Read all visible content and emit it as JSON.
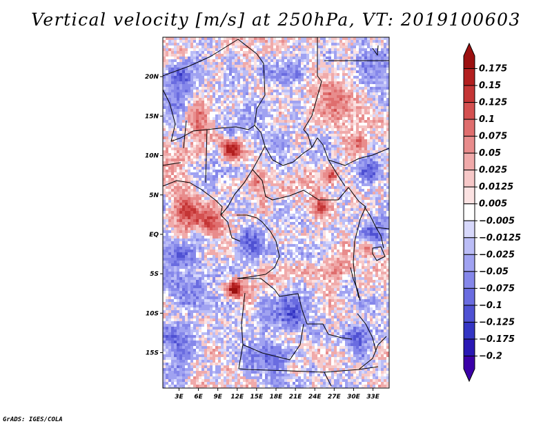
{
  "chart_data": {
    "type": "heatmap",
    "title": "Vertical velocity [m/s] at 250hPa, VT: 2019100603",
    "variable": "Vertical velocity",
    "units": "m/s",
    "level": "250hPa",
    "valid_time": "2019100603",
    "x_tick_labels": [
      "3E",
      "6E",
      "9E",
      "12E",
      "15E",
      "18E",
      "21E",
      "24E",
      "27E",
      "30E",
      "33E"
    ],
    "x_tick_values": [
      3,
      6,
      9,
      12,
      15,
      18,
      21,
      24,
      27,
      30,
      33
    ],
    "y_tick_labels": [
      "20N",
      "15N",
      "10N",
      "5N",
      "EQ",
      "5S",
      "10S",
      "15S"
    ],
    "y_tick_values": [
      20,
      15,
      10,
      5,
      0,
      -5,
      -10,
      -15
    ],
    "xlim": [
      0.5,
      35.5
    ],
    "ylim": [
      -19.5,
      25
    ],
    "colorbar": {
      "labels": [
        "0.175",
        "0.15",
        "0.125",
        "0.1",
        "0.075",
        "0.05",
        "0.025",
        "0.0125",
        "0.005",
        "−0.005",
        "−0.0125",
        "−0.025",
        "−0.05",
        "−0.075",
        "−0.1",
        "−0.125",
        "−0.175",
        "−0.2"
      ],
      "bins": [
        {
          "lo": -0.25,
          "hi": -0.2,
          "color": "#3b00a8"
        },
        {
          "lo": -0.2,
          "hi": -0.175,
          "color": "#2a18b4"
        },
        {
          "lo": -0.175,
          "hi": -0.125,
          "color": "#3435c4"
        },
        {
          "lo": -0.125,
          "hi": -0.1,
          "color": "#4f51d3"
        },
        {
          "lo": -0.1,
          "hi": -0.075,
          "color": "#6a6ce0"
        },
        {
          "lo": -0.075,
          "hi": -0.05,
          "color": "#8587ea"
        },
        {
          "lo": -0.05,
          "hi": -0.025,
          "color": "#a0a2f1"
        },
        {
          "lo": -0.025,
          "hi": -0.0125,
          "color": "#bbbdf6"
        },
        {
          "lo": -0.0125,
          "hi": -0.005,
          "color": "#d7d8fb"
        },
        {
          "lo": -0.005,
          "hi": 0.005,
          "color": "#ffffff"
        },
        {
          "lo": 0.005,
          "hi": 0.0125,
          "color": "#fbe2e2"
        },
        {
          "lo": 0.0125,
          "hi": 0.025,
          "color": "#f6c8c8"
        },
        {
          "lo": 0.025,
          "hi": 0.05,
          "color": "#f0aaaa"
        },
        {
          "lo": 0.05,
          "hi": 0.075,
          "color": "#e88c8c"
        },
        {
          "lo": 0.075,
          "hi": 0.1,
          "color": "#df6e6e"
        },
        {
          "lo": 0.1,
          "hi": 0.125,
          "color": "#d45050"
        },
        {
          "lo": 0.125,
          "hi": 0.15,
          "color": "#c43535"
        },
        {
          "lo": 0.15,
          "hi": 0.175,
          "color": "#b21f1f"
        },
        {
          "lo": 0.175,
          "hi": 0.25,
          "color": "#9b1010"
        }
      ]
    },
    "field_features": [
      {
        "lon": 11,
        "lat": 11,
        "strength": 0.19,
        "spread": 1.4
      },
      {
        "lon": 4,
        "lat": 3,
        "strength": 0.12,
        "spread": 2.2
      },
      {
        "lon": 8,
        "lat": 1.5,
        "strength": 0.12,
        "spread": 1.6
      },
      {
        "lon": 11.5,
        "lat": -7,
        "strength": 0.17,
        "spread": 1.1
      },
      {
        "lon": 15,
        "lat": 6.5,
        "strength": 0.09,
        "spread": 1.5
      },
      {
        "lon": 26.5,
        "lat": 7.5,
        "strength": 0.14,
        "spread": 1.0
      },
      {
        "lon": 25,
        "lat": 3.5,
        "strength": 0.11,
        "spread": 1.3
      },
      {
        "lon": 31,
        "lat": 11.5,
        "strength": 0.11,
        "spread": 1.3
      },
      {
        "lon": 32,
        "lat": -1.5,
        "strength": 0.1,
        "spread": 1.2
      },
      {
        "lon": 27,
        "lat": -4.5,
        "strength": 0.08,
        "spread": 1.8
      },
      {
        "lon": 28,
        "lat": 17,
        "strength": 0.08,
        "spread": 2.5
      },
      {
        "lon": 6,
        "lat": 15,
        "strength": 0.07,
        "spread": 2.2
      },
      {
        "lon": 11,
        "lat": 12.5,
        "strength": -0.12,
        "spread": 1.2
      },
      {
        "lon": 3,
        "lat": 19,
        "strength": -0.1,
        "spread": 2.8
      },
      {
        "lon": 4,
        "lat": -4,
        "strength": -0.07,
        "spread": 3.0
      },
      {
        "lon": 3,
        "lat": -13,
        "strength": -0.09,
        "spread": 3.0
      },
      {
        "lon": 14,
        "lat": -1,
        "strength": -0.08,
        "spread": 2.0
      },
      {
        "lon": 20,
        "lat": -10,
        "strength": -0.08,
        "spread": 2.5
      },
      {
        "lon": 17,
        "lat": -16,
        "strength": -0.07,
        "spread": 2.5
      },
      {
        "lon": 33,
        "lat": 8,
        "strength": -0.11,
        "spread": 1.6
      },
      {
        "lon": 33,
        "lat": 0,
        "strength": -0.08,
        "spread": 1.5
      },
      {
        "lon": 30,
        "lat": -13,
        "strength": -0.08,
        "spread": 2.0
      },
      {
        "lon": 19,
        "lat": 20,
        "strength": -0.06,
        "spread": 3.0
      },
      {
        "lon": 34,
        "lat": 21,
        "strength": -0.07,
        "spread": 2.0
      }
    ]
  },
  "credit": "GrADS: IGES/COLA"
}
